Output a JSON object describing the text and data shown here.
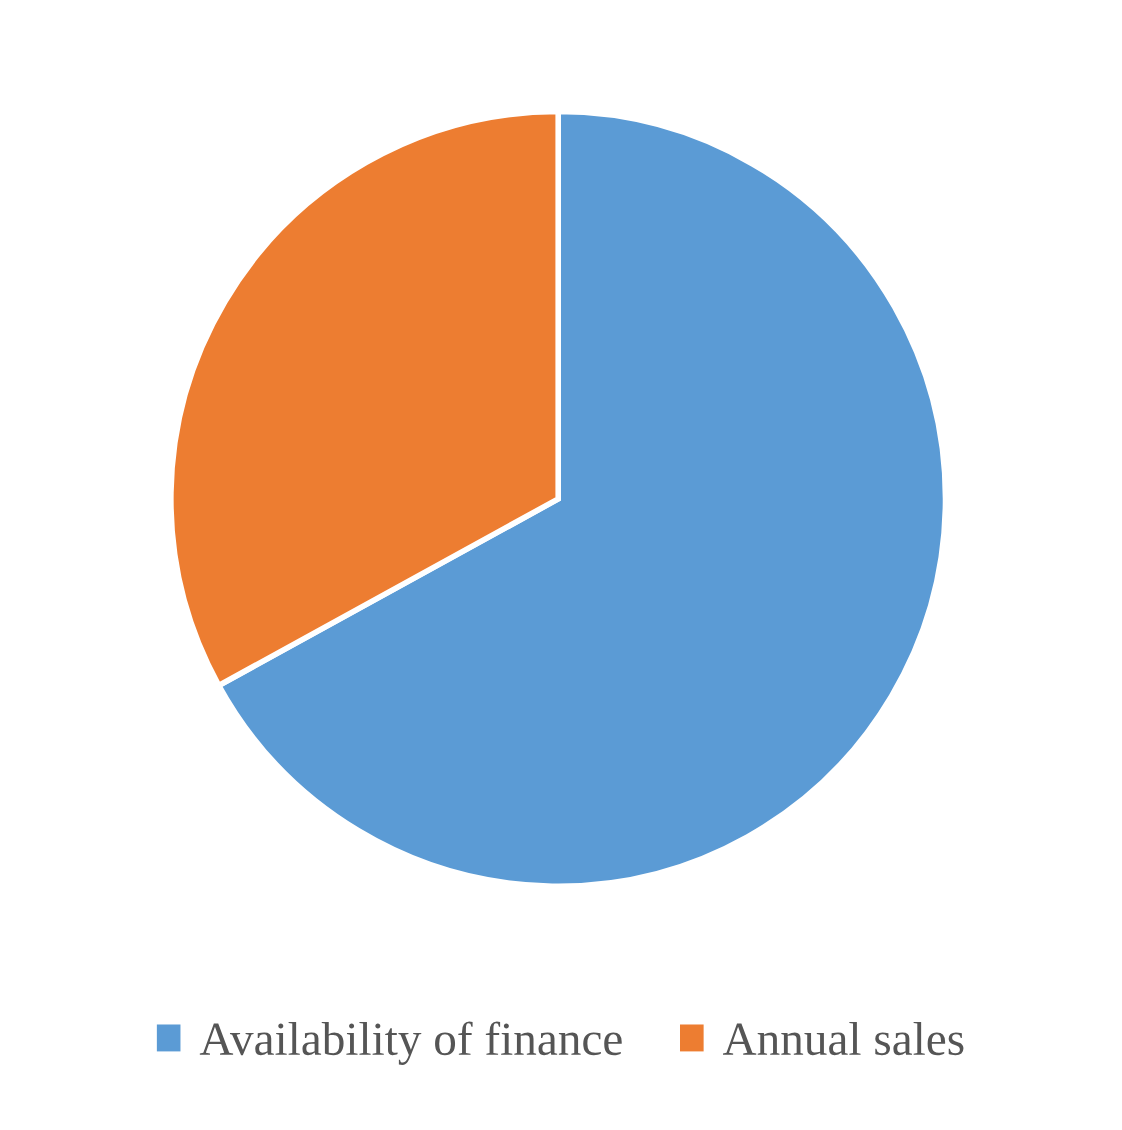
{
  "chart_data": {
    "type": "pie",
    "categories": [
      "Availability of finance",
      "Annual sales"
    ],
    "values": [
      67,
      33
    ],
    "colors": [
      "#5b9bd5",
      "#ed7d31"
    ],
    "legend": "bottom"
  }
}
